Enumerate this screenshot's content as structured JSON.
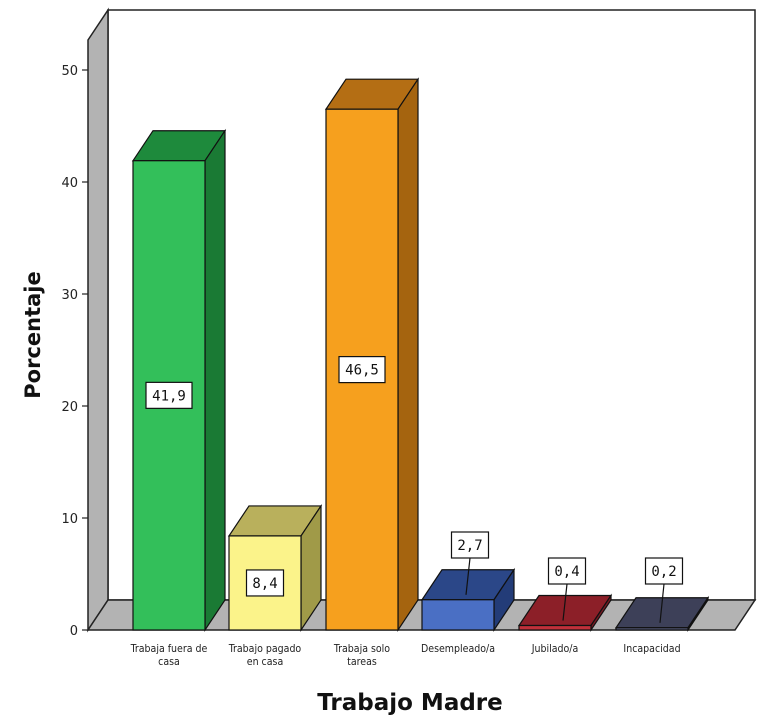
{
  "chart_data": {
    "type": "bar",
    "style": "3d",
    "xlabel": "Trabajo Madre",
    "ylabel": "Porcentaje",
    "ylim": [
      0,
      50
    ],
    "yticks": [
      "0",
      "10",
      "20",
      "30",
      "40",
      "50"
    ],
    "grid": false,
    "legend": "none",
    "categories": [
      [
        "Trabaja fuera de",
        "casa"
      ],
      [
        "Trabajo pagado",
        "en casa"
      ],
      [
        "Trabaja solo",
        "tareas"
      ],
      [
        "Desempleado/a"
      ],
      [
        "Jubilado/a"
      ],
      [
        "Incapacidad"
      ]
    ],
    "values": [
      41.9,
      8.4,
      46.5,
      2.7,
      0.4,
      0.2
    ],
    "value_labels": [
      "41,9",
      "8,4",
      "46,5",
      "2,7",
      "0,4",
      "0,2"
    ],
    "colors": [
      {
        "front": "#33bf5a",
        "top": "#1e8a3c",
        "side": "#1a7a34"
      },
      {
        "front": "#fbf38a",
        "top": "#b9b05c",
        "side": "#a09a48"
      },
      {
        "front": "#f6a01e",
        "top": "#b46e14",
        "side": "#a5640f"
      },
      {
        "front": "#4a6fc4",
        "top": "#2b4788",
        "side": "#233c78"
      },
      {
        "front": "#c0303a",
        "top": "#8c1f28",
        "side": "#7a1a22"
      },
      {
        "front": "#565a7a",
        "top": "#3d4058",
        "side": "#33364d"
      }
    ]
  }
}
